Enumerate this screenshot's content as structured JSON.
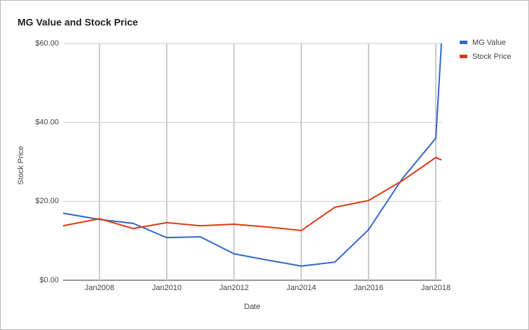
{
  "chart_data": {
    "type": "line",
    "title": "MG Value and Stock Price",
    "x_label": "Date",
    "y_label": "Stock Price",
    "x": [
      "2006-12",
      "2008-01",
      "2009-01",
      "2010-01",
      "2011-01",
      "2012-01",
      "2013-01",
      "2014-01",
      "2015-01",
      "2016-01",
      "2017-01",
      "2018-01",
      "2018-03"
    ],
    "series": [
      {
        "name": "MG Value",
        "color": "#3366cc",
        "values": [
          17.0,
          15.4,
          14.4,
          10.8,
          11.0,
          6.7,
          5.1,
          3.6,
          4.6,
          12.8,
          25.7,
          36.0,
          60.0
        ]
      },
      {
        "name": "Stock Price",
        "color": "#dc3912",
        "values": [
          13.8,
          15.6,
          13.1,
          14.6,
          13.8,
          14.2,
          13.5,
          12.6,
          18.5,
          20.2,
          25.2,
          31.1,
          30.5
        ]
      }
    ],
    "xlim": [
      "2006-12",
      "2018-03"
    ],
    "xticks": [
      {
        "value": "2008-01",
        "label": "Jan2008"
      },
      {
        "value": "2010-01",
        "label": "Jan2010"
      },
      {
        "value": "2012-01",
        "label": "Jan2012"
      },
      {
        "value": "2014-01",
        "label": "Jan2014"
      },
      {
        "value": "2016-01",
        "label": "Jan2016"
      },
      {
        "value": "2018-01",
        "label": "Jan2018"
      }
    ],
    "ylim": [
      0,
      60
    ],
    "yticks": [
      {
        "value": 0,
        "label": "$0.00"
      },
      {
        "value": 20,
        "label": "$20.00"
      },
      {
        "value": 40,
        "label": "$40.00"
      },
      {
        "value": 60,
        "label": "$60.00"
      }
    ],
    "grid": true,
    "legend": "right"
  }
}
